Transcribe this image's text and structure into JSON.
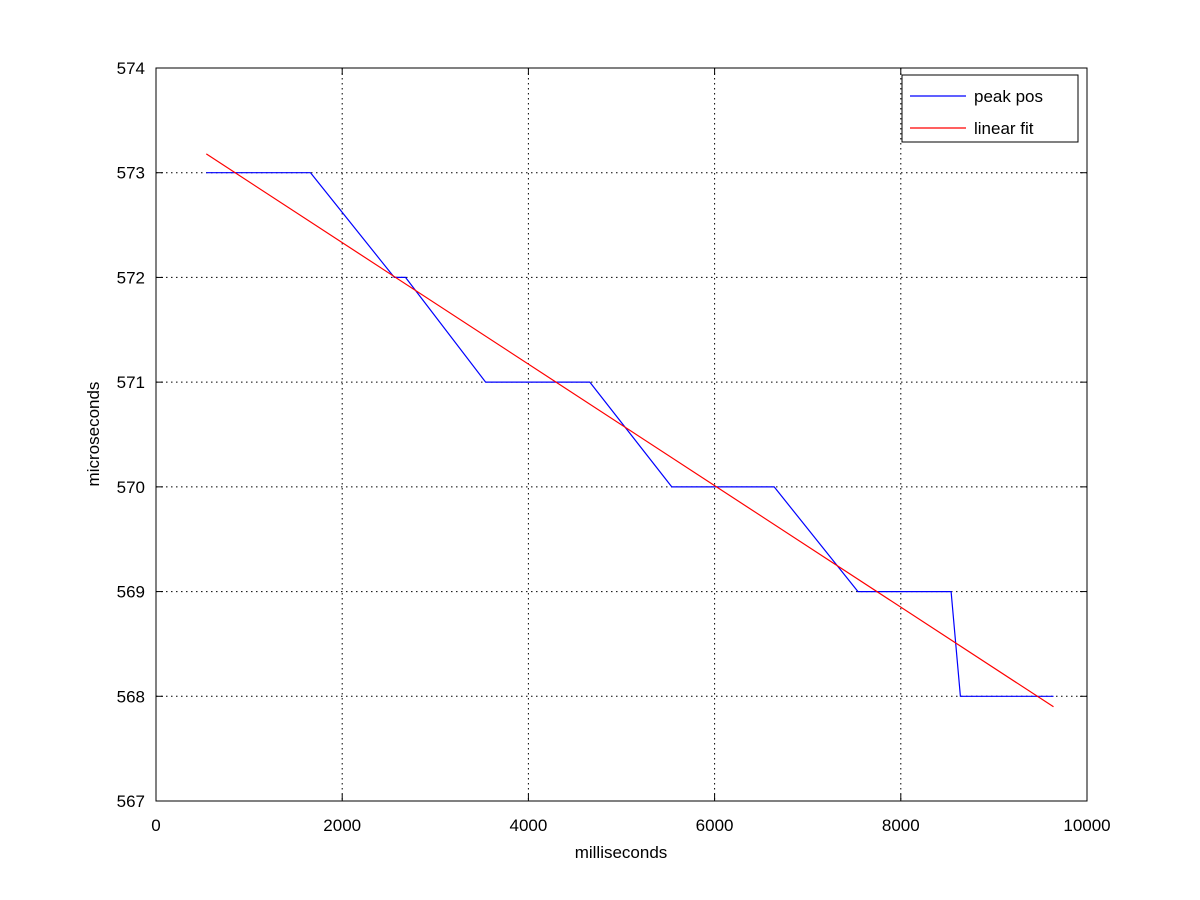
{
  "chart_data": {
    "type": "line",
    "title": "",
    "xlabel": "milliseconds",
    "ylabel": "microseconds",
    "xlim": [
      0,
      10000
    ],
    "ylim": [
      567,
      574
    ],
    "xticks": [
      0,
      2000,
      4000,
      6000,
      8000,
      10000
    ],
    "yticks": [
      567,
      568,
      569,
      570,
      571,
      572,
      573,
      574
    ],
    "grid": true,
    "legend_position": "top-right",
    "series": [
      {
        "name": "peak pos",
        "color": "#0000ff",
        "x": [
          540,
          1660,
          2560,
          2680,
          3540,
          4660,
          5540,
          6640,
          7540,
          8540,
          8640,
          9640
        ],
        "y": [
          573,
          573,
          572,
          572,
          571,
          571,
          570,
          570,
          569,
          569,
          568,
          568
        ]
      },
      {
        "name": "linear fit",
        "color": "#ff0000",
        "x": [
          540,
          9640
        ],
        "y": [
          573.18,
          567.9
        ]
      }
    ]
  }
}
